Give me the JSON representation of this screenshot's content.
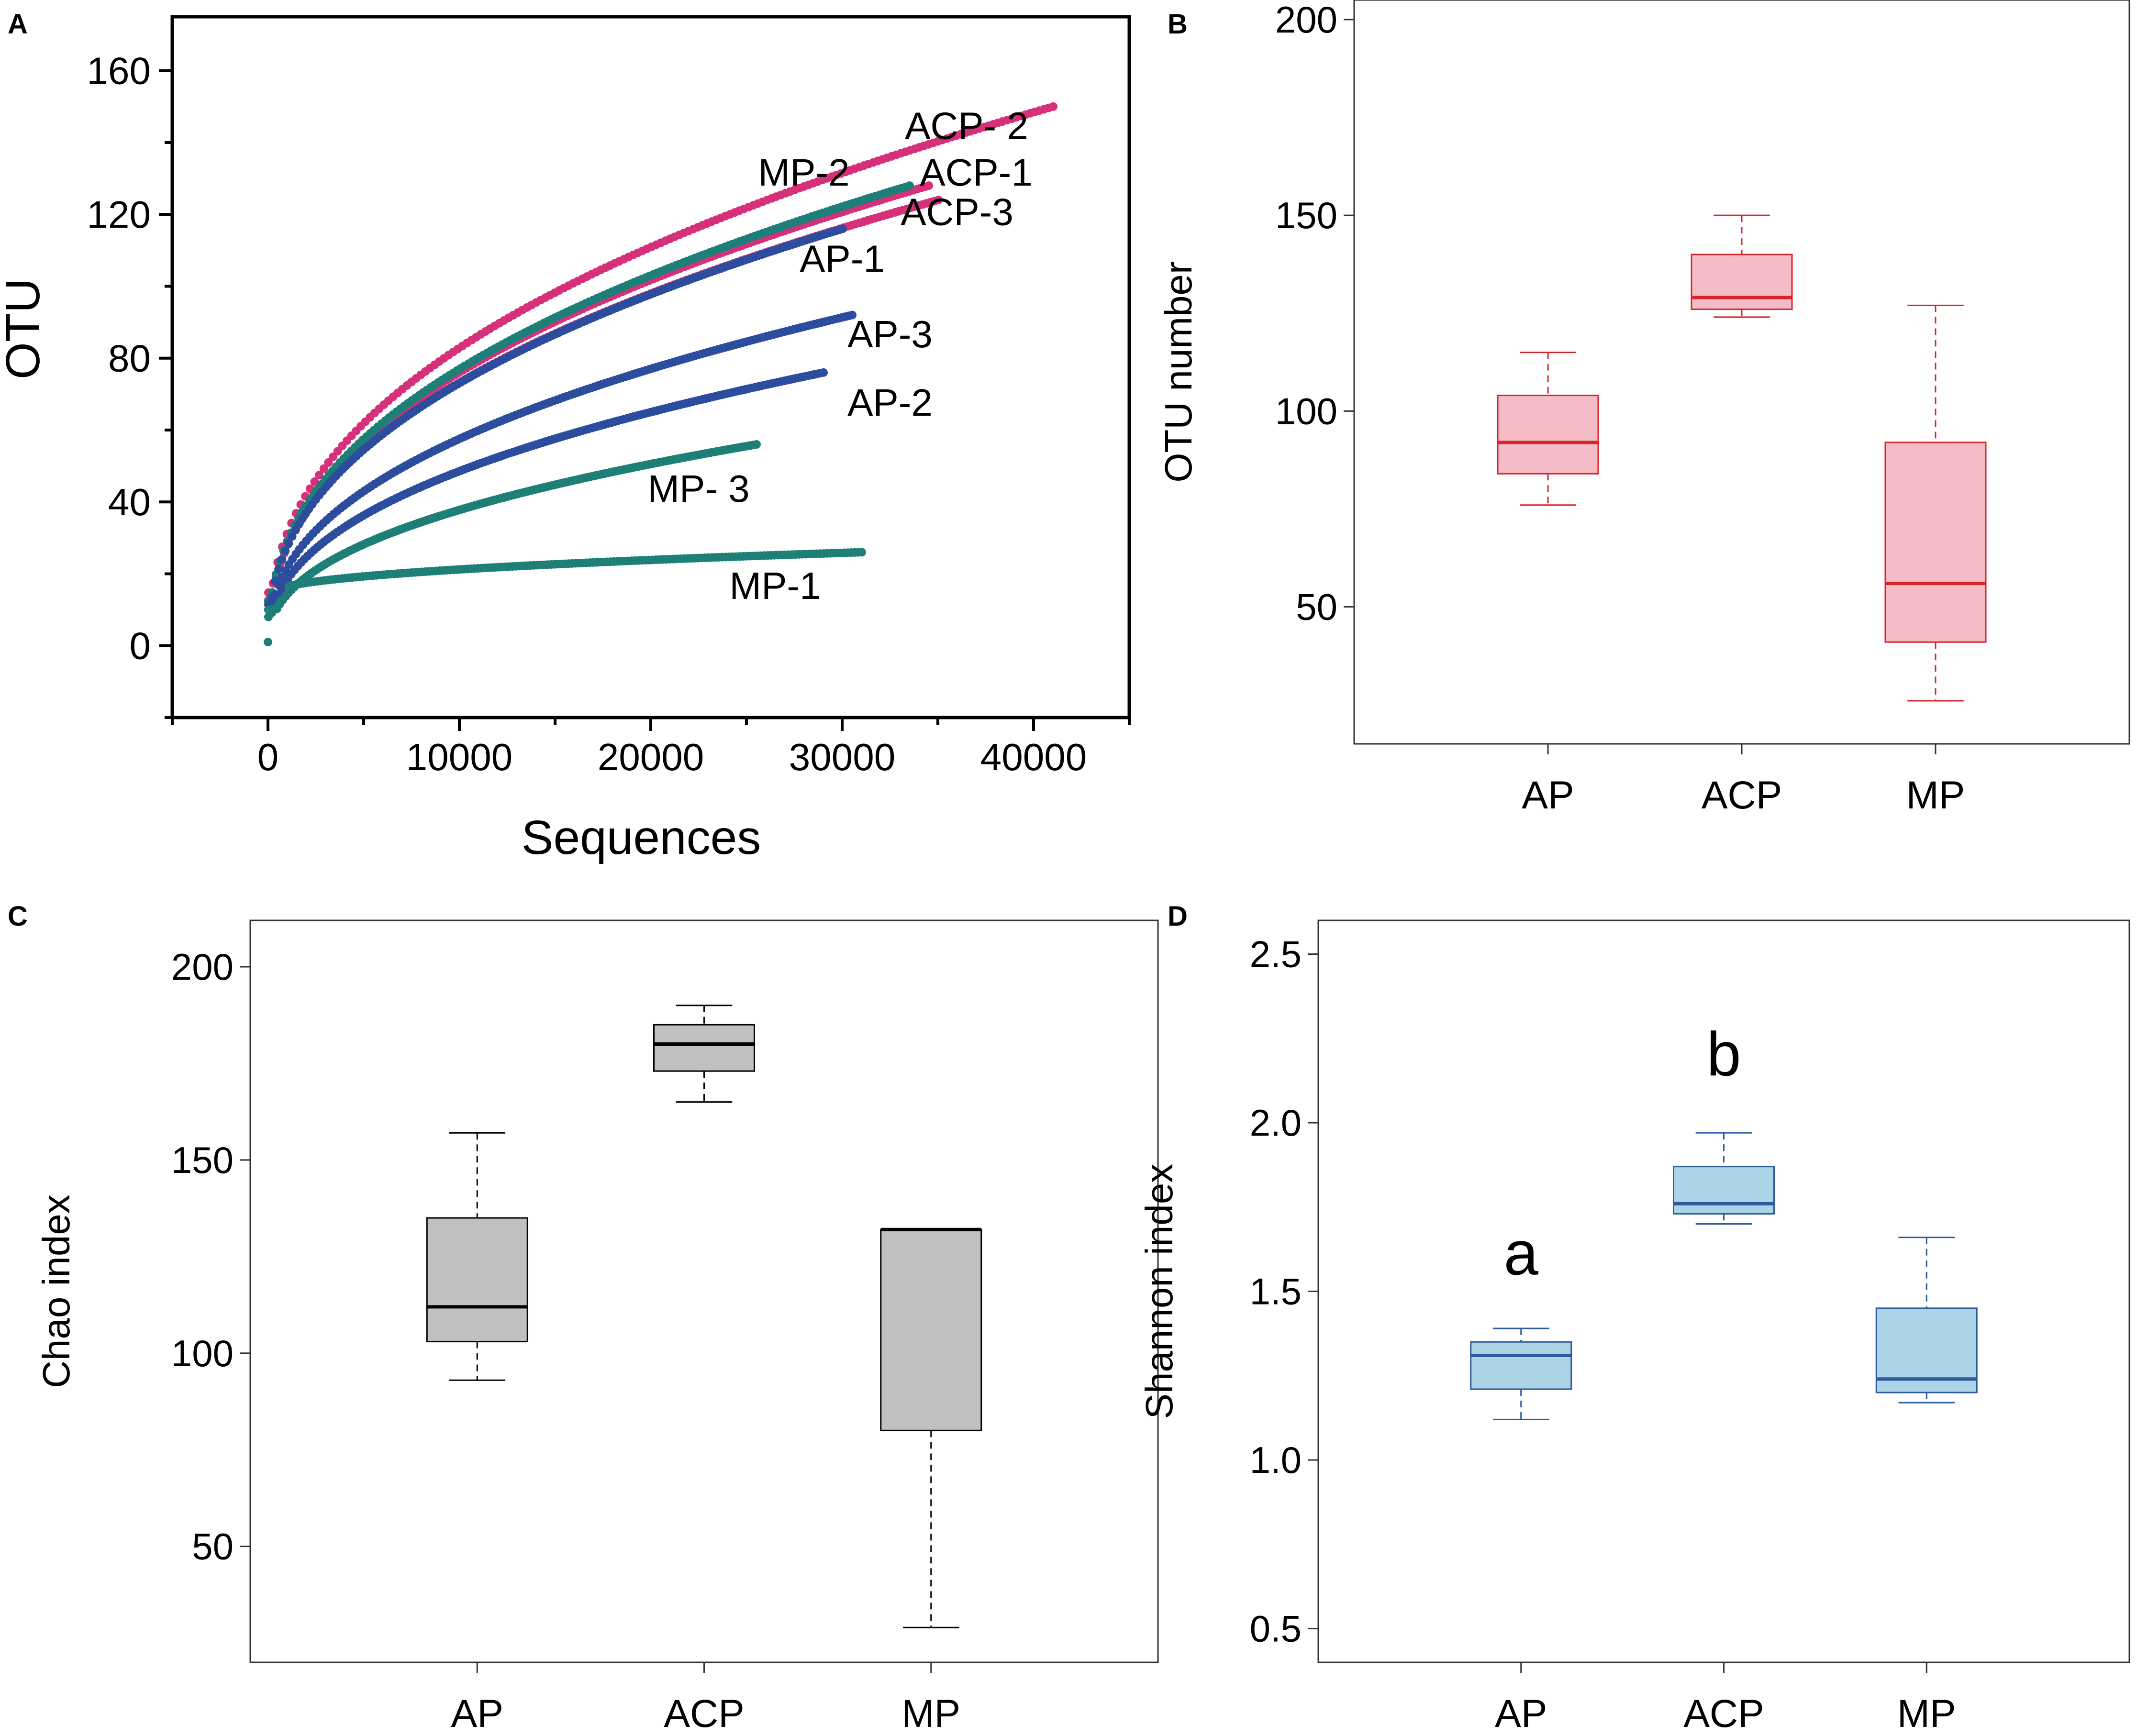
{
  "colors": {
    "ap": "#2c4d9e",
    "acp": "#d6307a",
    "mp": "#1d7f78",
    "box_b_fill": "#f4bcc6",
    "box_b_line": "#d9242b",
    "box_c_fill": "#c0c0c0",
    "box_c_line": "#000000",
    "box_d_fill": "#abd4e6",
    "box_d_line": "#2e5a9e"
  },
  "chart_data": [
    {
      "panel": "A",
      "type": "scatter",
      "title": "",
      "xlabel": "Sequences",
      "ylabel": "OTU",
      "xlim": [
        -5000,
        45000
      ],
      "ylim": [
        -20,
        175
      ],
      "xticks": [
        0,
        10000,
        20000,
        30000,
        40000
      ],
      "yticks": [
        0,
        40,
        80,
        120,
        160
      ],
      "series": [
        {
          "name": "ACP- 2",
          "group": "acp",
          "xmax": 41000,
          "ymax": 150,
          "label_x": 36500,
          "label_y": 141
        },
        {
          "name": "ACP-1",
          "group": "acp",
          "xmax": 34500,
          "ymax": 128,
          "label_x": 37000,
          "label_y": 128
        },
        {
          "name": "ACP-3",
          "group": "acp",
          "xmax": 35000,
          "ymax": 124,
          "label_x": 36000,
          "label_y": 117
        },
        {
          "name": "MP-2",
          "group": "mp",
          "xmax": 33500,
          "ymax": 128,
          "label_x": 28000,
          "label_y": 128
        },
        {
          "name": "AP-1",
          "group": "ap",
          "xmax": 30000,
          "ymax": 116,
          "label_x": 30000,
          "label_y": 104
        },
        {
          "name": "AP-3",
          "group": "ap",
          "xmax": 30500,
          "ymax": 92,
          "label_x": 32500,
          "label_y": 83
        },
        {
          "name": "AP-2",
          "group": "ap",
          "xmax": 29000,
          "ymax": 76,
          "label_x": 32500,
          "label_y": 64
        },
        {
          "name": "MP- 3",
          "group": "mp",
          "xmax": 25500,
          "ymax": 56,
          "label_x": 22500,
          "label_y": 40
        },
        {
          "name": "MP-1",
          "group": "mp",
          "xmax": 31000,
          "ymax": 26,
          "label_x": 26500,
          "label_y": 13
        }
      ]
    },
    {
      "panel": "B",
      "type": "box",
      "ylabel": "OTU number",
      "ylim": [
        15,
        205
      ],
      "yticks": [
        50,
        100,
        150,
        200
      ],
      "categories": [
        "AP",
        "ACP",
        "MP"
      ],
      "boxes": [
        {
          "min": 76,
          "q1": 84,
          "median": 92,
          "q3": 104,
          "max": 115
        },
        {
          "min": 124,
          "q1": 126,
          "median": 129,
          "q3": 140,
          "max": 150
        },
        {
          "min": 26,
          "q1": 41,
          "median": 56,
          "q3": 92,
          "max": 127
        }
      ],
      "annotations": []
    },
    {
      "panel": "C",
      "type": "box",
      "ylabel": "Chao index",
      "ylim": [
        20,
        212
      ],
      "yticks": [
        50,
        100,
        150,
        200
      ],
      "categories": [
        "AP",
        "ACP",
        "MP"
      ],
      "boxes": [
        {
          "min": 93,
          "q1": 103,
          "median": 112,
          "q3": 135,
          "max": 157
        },
        {
          "min": 165,
          "q1": 173,
          "median": 180,
          "q3": 185,
          "max": 190
        },
        {
          "min": 29,
          "q1": 80,
          "median": 132,
          "q3": 132,
          "max": 132
        }
      ],
      "annotations": []
    },
    {
      "panel": "D",
      "type": "box",
      "ylabel": "Shannon index",
      "ylim": [
        0.4,
        2.6
      ],
      "yticks": [
        0.5,
        1.0,
        1.5,
        2.0,
        2.5
      ],
      "ytick_labels": [
        "0.5",
        "1.0",
        "1.5",
        "2.0",
        "2.5"
      ],
      "categories": [
        "AP",
        "ACP",
        "MP"
      ],
      "boxes": [
        {
          "min": 1.12,
          "q1": 1.21,
          "median": 1.31,
          "q3": 1.35,
          "max": 1.39
        },
        {
          "min": 1.7,
          "q1": 1.73,
          "median": 1.76,
          "q3": 1.87,
          "max": 1.97
        },
        {
          "min": 1.17,
          "q1": 1.2,
          "median": 1.24,
          "q3": 1.45,
          "max": 1.66
        }
      ],
      "annotations": [
        {
          "text": "a",
          "category": 0,
          "y": 1.55
        },
        {
          "text": "b",
          "category": 1,
          "y": 2.14
        }
      ]
    }
  ]
}
